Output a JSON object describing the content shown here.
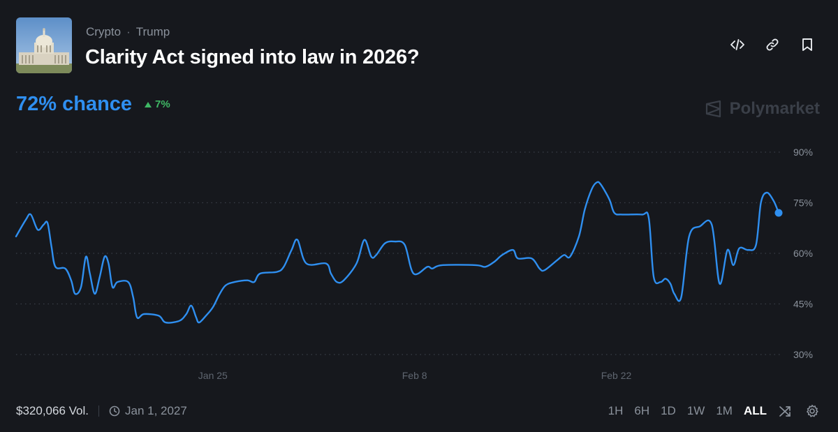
{
  "header": {
    "breadcrumb": [
      "Crypto",
      "Trump"
    ],
    "breadcrumb_separator": "·",
    "title": "Clarity Act signed into law in 2026?",
    "actions": [
      "embed-icon",
      "link-icon",
      "bookmark-icon"
    ]
  },
  "summary": {
    "chance_label": "72% chance",
    "change_label": "7%",
    "change_direction": "up"
  },
  "brand": {
    "name": "Polymarket"
  },
  "footer": {
    "volume": "$320,066 Vol.",
    "end_date": "Jan 1, 2027",
    "ranges": [
      "1H",
      "6H",
      "1D",
      "1W",
      "1M",
      "ALL"
    ],
    "active_range": "ALL"
  },
  "colors": {
    "background": "#16181d",
    "line": "#2f8ff0",
    "positive": "#3fb865",
    "grid": "#3a3f48",
    "muted_text": "#8b929c"
  },
  "chart_data": {
    "type": "line",
    "series": [
      {
        "values": [
          [
            0,
            65
          ],
          [
            1,
            70
          ],
          [
            1.5,
            71.5
          ],
          [
            2.2,
            67
          ],
          [
            2.8,
            68.5
          ],
          [
            3.2,
            69
          ],
          [
            3.6,
            62
          ],
          [
            4,
            56
          ],
          [
            5,
            55.5
          ],
          [
            5.6,
            52
          ],
          [
            6,
            48
          ],
          [
            6.6,
            50
          ],
          [
            7.1,
            59
          ],
          [
            7.5,
            54
          ],
          [
            8,
            48
          ],
          [
            8.5,
            53
          ],
          [
            9,
            59
          ],
          [
            9.4,
            57
          ],
          [
            9.8,
            50
          ],
          [
            10.3,
            51.5
          ],
          [
            11.4,
            51.5
          ],
          [
            11.9,
            47
          ],
          [
            12.3,
            41
          ],
          [
            13,
            42
          ],
          [
            14.5,
            41.5
          ],
          [
            15.2,
            39.5
          ],
          [
            16.6,
            40
          ],
          [
            17.3,
            42
          ],
          [
            17.8,
            44.5
          ],
          [
            18.3,
            41
          ],
          [
            18.6,
            39.5
          ],
          [
            19.3,
            41.5
          ],
          [
            20,
            44
          ],
          [
            20.7,
            48
          ],
          [
            21.3,
            50.5
          ],
          [
            22.2,
            51.5
          ],
          [
            23.5,
            52
          ],
          [
            24.2,
            51.5
          ],
          [
            24.8,
            54
          ],
          [
            26.5,
            54.5
          ],
          [
            27.2,
            56
          ],
          [
            28,
            61
          ],
          [
            28.6,
            64
          ],
          [
            29.5,
            57
          ],
          [
            31.5,
            57
          ],
          [
            32,
            54
          ],
          [
            32.6,
            51.5
          ],
          [
            33.3,
            52
          ],
          [
            34.6,
            57
          ],
          [
            35.4,
            64
          ],
          [
            36.1,
            59
          ],
          [
            36.6,
            59.5
          ],
          [
            37.5,
            63
          ],
          [
            38.5,
            63.5
          ],
          [
            39.5,
            62.5
          ],
          [
            40.4,
            54
          ],
          [
            41.8,
            56
          ],
          [
            42.3,
            55.5
          ],
          [
            43.3,
            56.5
          ],
          [
            46.7,
            56.5
          ],
          [
            47.7,
            56
          ],
          [
            48.6,
            57.5
          ],
          [
            49.4,
            59.5
          ],
          [
            50.5,
            61
          ],
          [
            51,
            58.5
          ],
          [
            52.4,
            58.5
          ],
          [
            53.2,
            55.5
          ],
          [
            53.7,
            55
          ],
          [
            55,
            58
          ],
          [
            55.7,
            59.5
          ],
          [
            56.3,
            59
          ],
          [
            57.2,
            65
          ],
          [
            57.8,
            73
          ],
          [
            58.5,
            79
          ],
          [
            59,
            81
          ],
          [
            59.4,
            80.5
          ],
          [
            60.3,
            76
          ],
          [
            60.8,
            72
          ],
          [
            61.6,
            71.5
          ],
          [
            63.6,
            71.5
          ],
          [
            64.3,
            70.5
          ],
          [
            64.8,
            53
          ],
          [
            65.5,
            51.5
          ],
          [
            66,
            52.5
          ],
          [
            66.5,
            51
          ],
          [
            66.9,
            48
          ],
          [
            67.6,
            47
          ],
          [
            68.4,
            65
          ],
          [
            69.5,
            68
          ],
          [
            70.7,
            68.5
          ],
          [
            71.5,
            51
          ],
          [
            72.3,
            61
          ],
          [
            72.9,
            56.5
          ],
          [
            73.5,
            61.5
          ],
          [
            74.4,
            61
          ],
          [
            75.2,
            62.5
          ],
          [
            75.7,
            75
          ],
          [
            76.3,
            78
          ],
          [
            77,
            75.5
          ],
          [
            77.5,
            72
          ]
        ]
      }
    ],
    "xlabel": "",
    "ylabel": "",
    "x_ticks": [
      {
        "label": "Jan 25",
        "x": 20
      },
      {
        "label": "Feb 8",
        "x": 40.5
      },
      {
        "label": "Feb 22",
        "x": 61
      }
    ],
    "y_ticks": [
      90,
      75,
      60,
      45,
      30
    ],
    "y_tick_suffix": "%",
    "xlim": [
      0,
      77.5
    ],
    "ylim": [
      30,
      90
    ],
    "grid": "horizontal-dotted",
    "end_marker": true
  }
}
